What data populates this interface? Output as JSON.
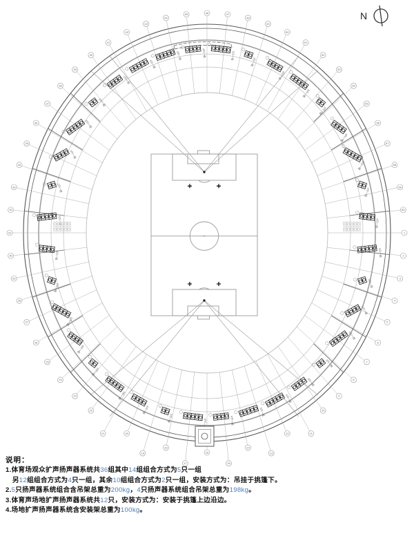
{
  "compass": {
    "label": "N"
  },
  "notes": {
    "heading": "说明：",
    "highlight_color": "#4d7db8",
    "lines": [
      [
        {
          "t": "1.体育场观众扩声扬声器系统共"
        },
        {
          "t": "36",
          "hl": true
        },
        {
          "t": "组其中"
        },
        {
          "t": "14",
          "hl": true
        },
        {
          "t": "组组合方式为"
        },
        {
          "t": "5",
          "hl": true
        },
        {
          "t": "只一组"
        }
      ],
      [
        {
          "t": "　另"
        },
        {
          "t": "12",
          "hl": true
        },
        {
          "t": "组组合方式为"
        },
        {
          "t": "4",
          "hl": true
        },
        {
          "t": "只一组，其余"
        },
        {
          "t": "10",
          "hl": true
        },
        {
          "t": "组组合方式为"
        },
        {
          "t": "2",
          "hl": true
        },
        {
          "t": "只一组，安装方式为：吊挂于挑篷下。"
        }
      ],
      [
        {
          "t": "2."
        },
        {
          "t": "5",
          "hl": true
        },
        {
          "t": "只扬声器系统组合含吊架总重为"
        },
        {
          "t": "200kg",
          "hl": true
        },
        {
          "t": "，"
        },
        {
          "t": "4",
          "hl": true
        },
        {
          "t": "只扬声器系统组合吊架总重为"
        },
        {
          "t": "198kg",
          "hl": true
        },
        {
          "t": "。"
        }
      ],
      [
        {
          "t": "3.体育声场地扩声扬声器系统共"
        },
        {
          "t": "12",
          "hl": true
        },
        {
          "t": "只，安装方式为：安装于挑篷上边沿边。"
        }
      ],
      [
        {
          "t": "4.场地扩声扬声器系统含安装架总重为"
        },
        {
          "t": "100kg",
          "hl": true
        },
        {
          "t": "。"
        }
      ]
    ]
  },
  "grid": {
    "labels": [
      "1",
      "2",
      "3",
      "4",
      "5",
      "6",
      "7",
      "8",
      "9",
      "10",
      "11",
      "12",
      "13",
      "14",
      "15",
      "16",
      "17",
      "18",
      "19",
      "20",
      "21",
      "22",
      "23",
      "24",
      "25",
      "26",
      "27",
      "28",
      "29",
      "30",
      "31",
      "32",
      "33",
      "34",
      "35",
      "36",
      "37",
      "38",
      "39",
      "40",
      "41",
      "42",
      "43",
      "44",
      "45",
      "46",
      "47",
      "48",
      "49",
      "50",
      "51",
      "52",
      "53",
      "54",
      "55",
      "56",
      "57",
      "58",
      "59",
      "60"
    ]
  },
  "clusters": {
    "total_groups": 36,
    "sizes": [
      5,
      2,
      4,
      5,
      2,
      4,
      5,
      2,
      4,
      5,
      2,
      4,
      5,
      2,
      4,
      5,
      5,
      4,
      5,
      2,
      4,
      5,
      2,
      4,
      5,
      2,
      4,
      5,
      2,
      4,
      5,
      2,
      4,
      5,
      5,
      4
    ],
    "group_labels": {
      "5": "5只一组",
      "4": "4只一组",
      "2": "2只一组"
    }
  },
  "colors": {
    "ring_dark": "#555555",
    "ring_mid": "#999999",
    "ring_light": "#bdbdbd",
    "grid_line": "#aaaaaa",
    "cluster": "#222222",
    "field_line": "#9a9a9a",
    "label_text": "#666666",
    "highlight_number": "#4d7db8"
  }
}
